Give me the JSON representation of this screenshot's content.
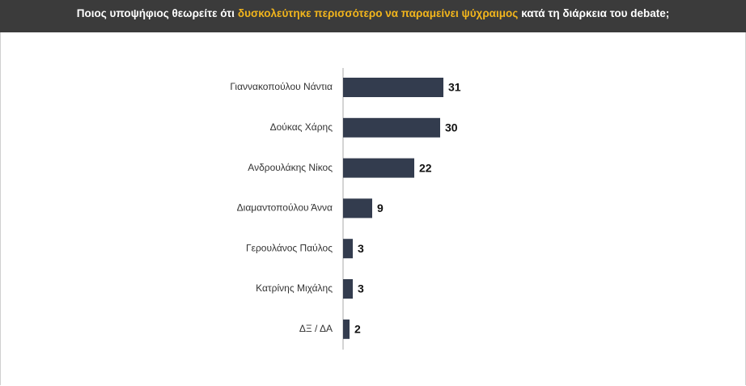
{
  "chart_data": {
    "type": "bar",
    "orientation": "horizontal",
    "title_parts": [
      "Ποιος υποψήφιος θεωρείτε ότι",
      "δυσκολεύτηκε περισσότερο να παραμείνει ψύχραιμος",
      "κατά τη διάρκεια του debate;"
    ],
    "categories": [
      "Γιαννακοπούλου Νάντια",
      "Δούκας Χάρης",
      "Ανδρουλάκης Νίκος",
      "Διαμαντοπούλου Άννα",
      "Γερουλάνος Παύλος",
      "Κατρίνης Μιχάλης",
      "ΔΞ / ΔΑ"
    ],
    "values": [
      31,
      30,
      22,
      9,
      3,
      3,
      2
    ],
    "color": "#333c4e"
  }
}
